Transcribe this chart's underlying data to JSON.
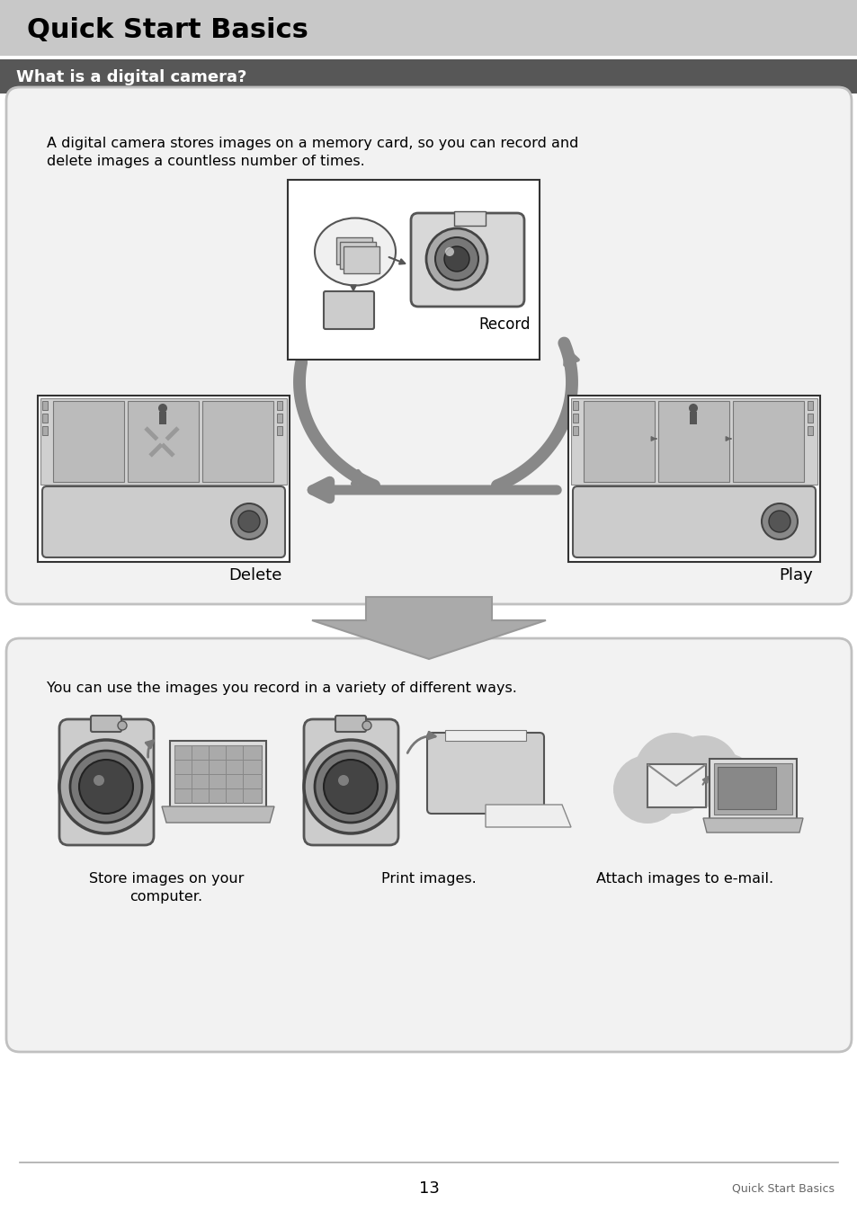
{
  "page_bg": "#ffffff",
  "header_bg": "#c8c8c8",
  "header_text": "Quick Start Basics",
  "header_text_color": "#000000",
  "subheader_bg": "#575757",
  "subheader_text": "What is a digital camera?",
  "subheader_text_color": "#ffffff",
  "box1_bg": "#f2f2f2",
  "box1_text_line1": "A digital camera stores images on a memory card, so you can record and",
  "box1_text_line2": "delete images a countless number of times.",
  "record_label": "Record",
  "delete_label": "Delete",
  "play_label": "Play",
  "box2_bg": "#f2f2f2",
  "box2_text": "You can use the images you record in a variety of different ways.",
  "caption1_line1": "Store images on your",
  "caption1_line2": "computer.",
  "caption2": "Print images.",
  "caption3": "Attach images to e-mail.",
  "footer_line_color": "#aaaaaa",
  "footer_page_num": "13",
  "footer_right_text": "Quick Start Basics",
  "arrow_color": "#888888",
  "img_border_color": "#333333",
  "fig_width": 9.54,
  "fig_height": 13.57
}
